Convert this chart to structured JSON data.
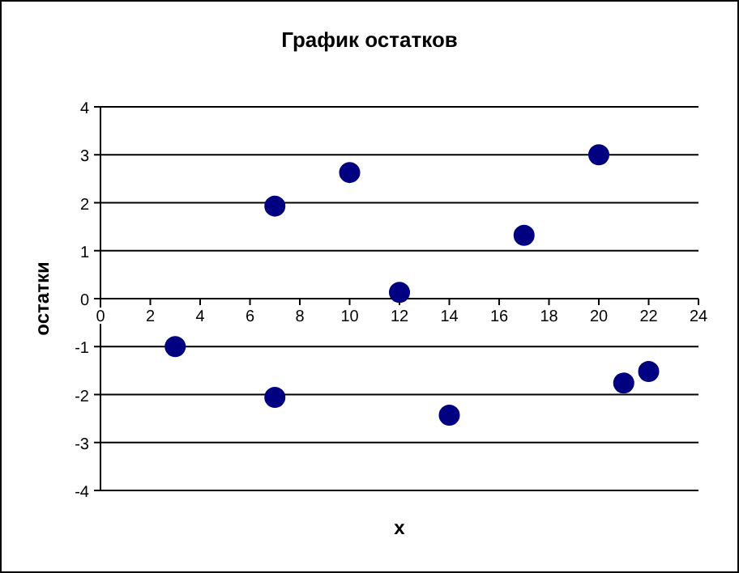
{
  "chart_data": {
    "type": "scatter",
    "title": "График остатков",
    "xlabel": "x",
    "ylabel": "остатки",
    "x": [
      3,
      7,
      7,
      10,
      12,
      14,
      17,
      20,
      21,
      22
    ],
    "values": [
      -1,
      1.93,
      -2.06,
      2.63,
      0.13,
      -2.43,
      1.32,
      3,
      -1.76,
      -1.52
    ],
    "color": "#000080",
    "marker": "circle",
    "xlim": [
      0,
      24
    ],
    "xticks": [
      0,
      2,
      4,
      6,
      8,
      10,
      12,
      14,
      16,
      18,
      20,
      22,
      24
    ],
    "ylim": [
      -4,
      4
    ],
    "yticks": [
      -4,
      -3,
      -2,
      -1,
      0,
      1,
      2,
      3,
      4
    ],
    "grid": "y"
  }
}
